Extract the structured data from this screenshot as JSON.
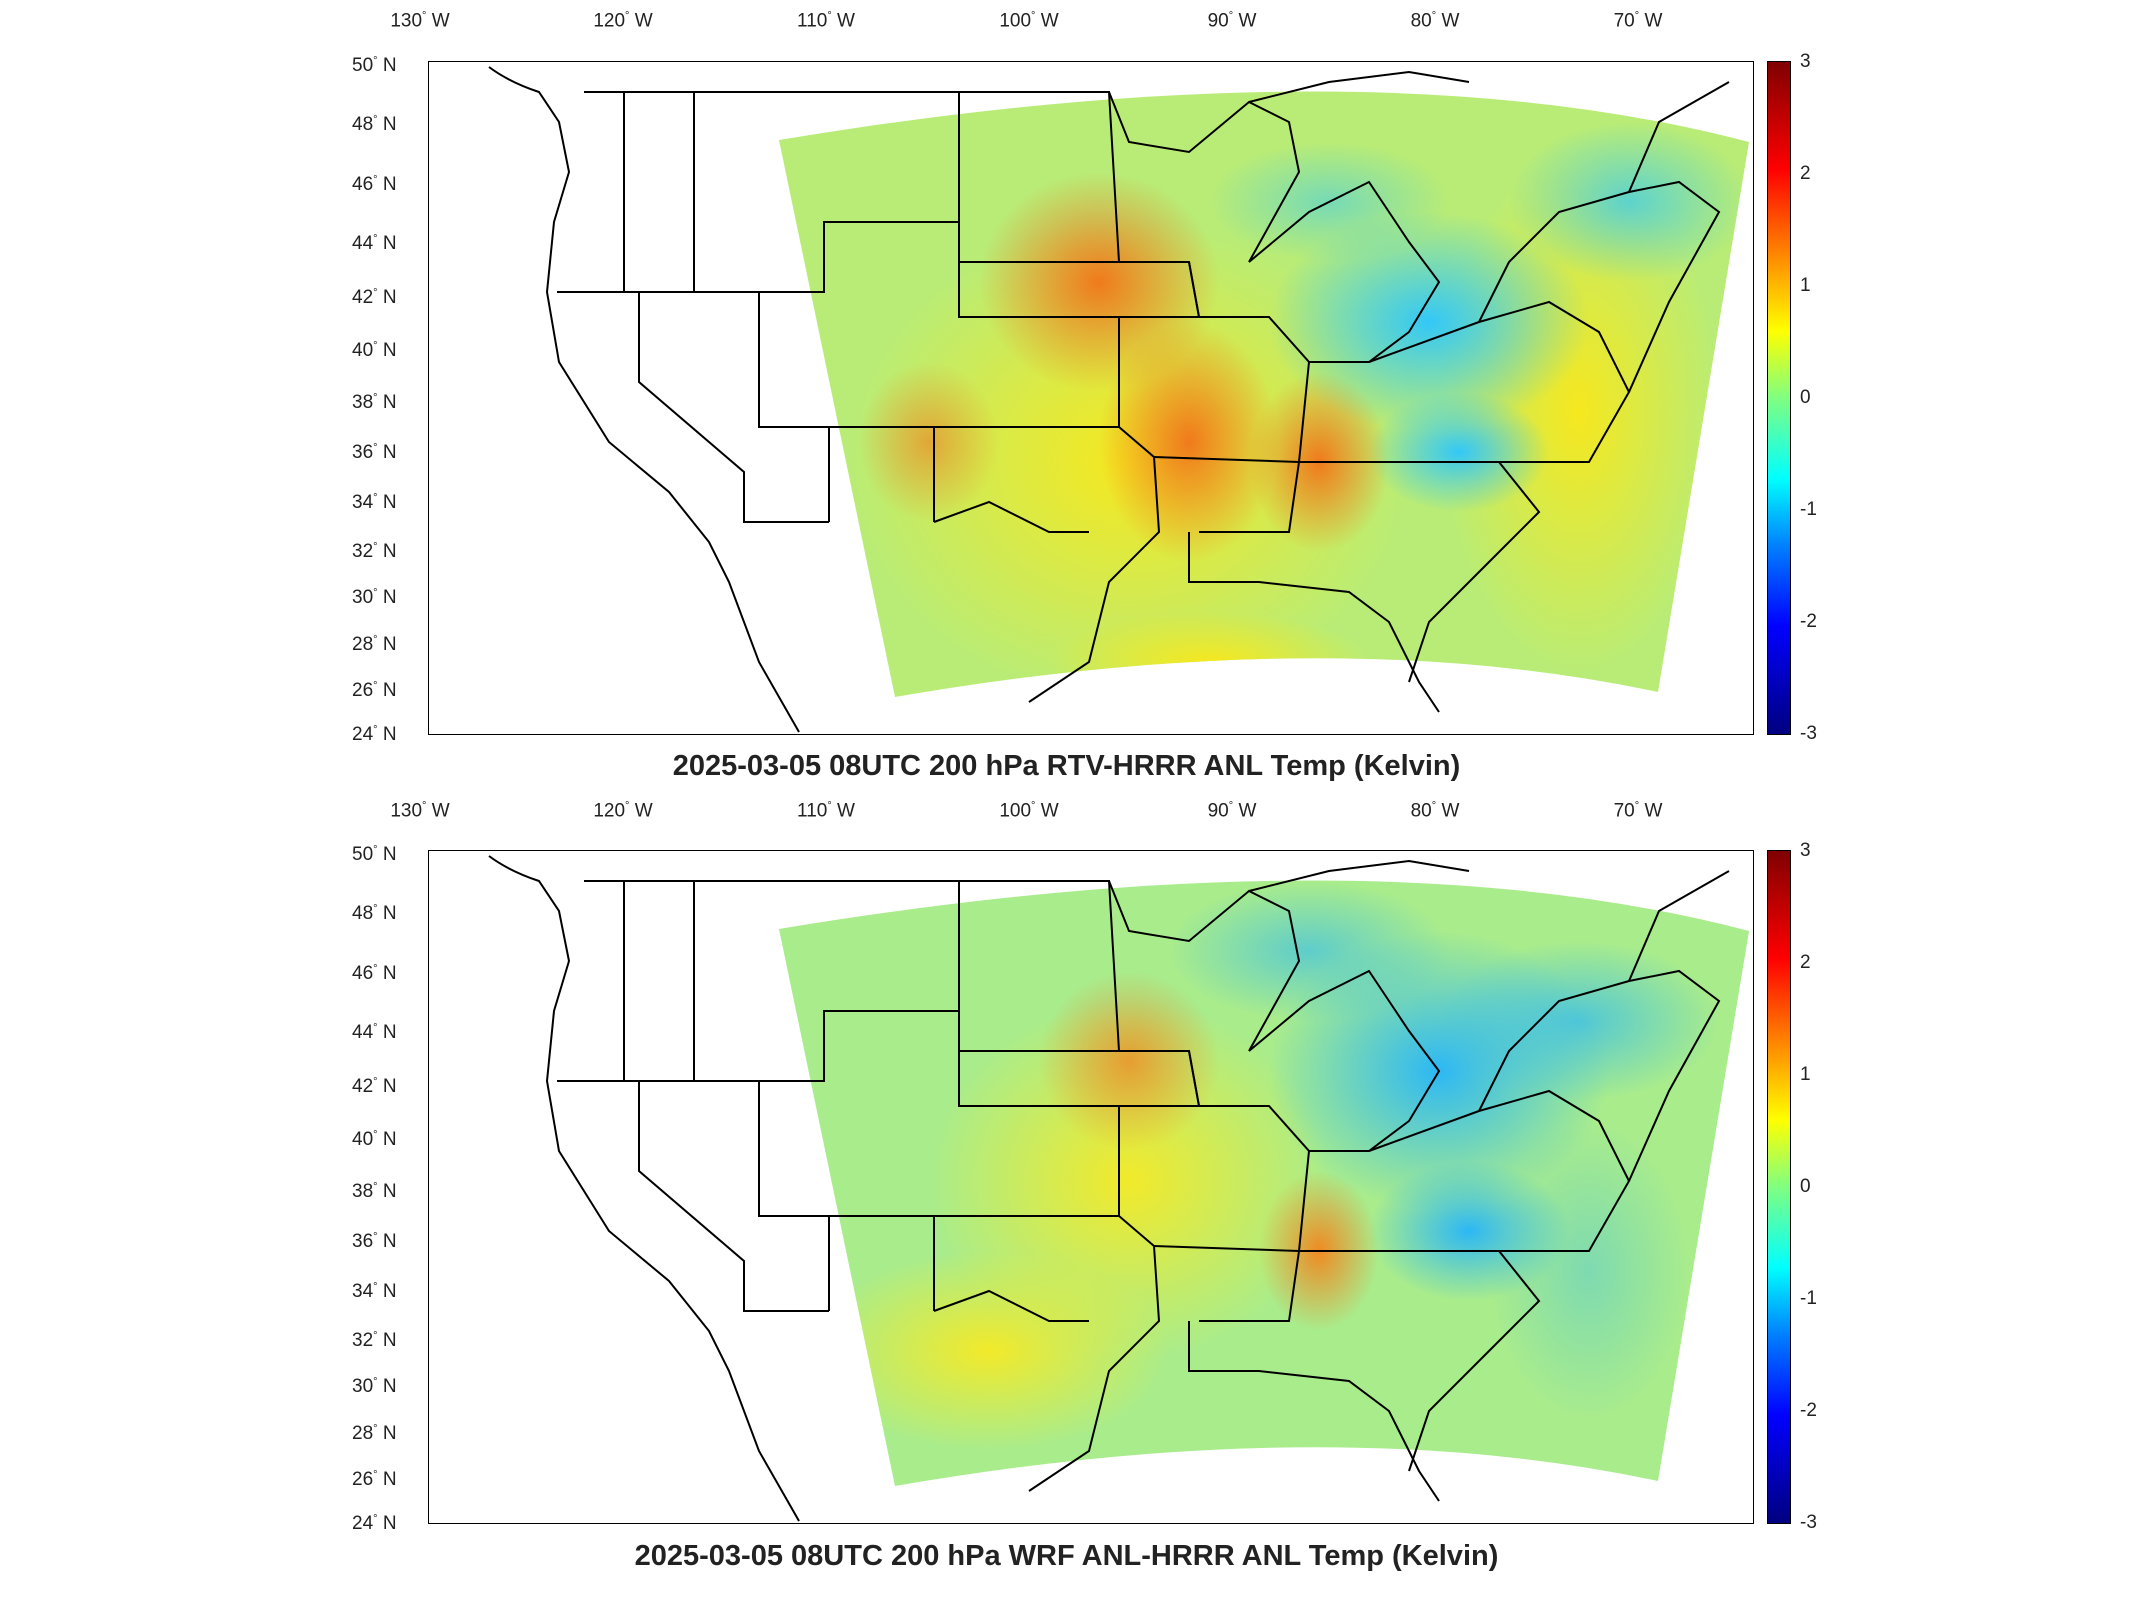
{
  "panels": [
    {
      "title": "2025-03-05 08UTC 200 hPa RTV-HRRR ANL Temp (Kelvin)",
      "variant": "rtv"
    },
    {
      "title": "2025-03-05 08UTC 200 hPa WRF ANL-HRRR ANL Temp (Kelvin)",
      "variant": "wrf"
    }
  ],
  "lon_labels": [
    "130",
    "120",
    "110",
    "100",
    "90",
    "80",
    "70"
  ],
  "lon_suffix": "W",
  "lat_labels": [
    "50",
    "48",
    "46",
    "44",
    "42",
    "40",
    "38",
    "36",
    "34",
    "32",
    "30",
    "28",
    "26",
    "24"
  ],
  "lat_suffix": "N",
  "degree_symbol": "°",
  "colorbar": {
    "ticks": [
      "3",
      "2",
      "1",
      "0",
      "-1",
      "-2",
      "-3"
    ],
    "range": [
      -3,
      3
    ],
    "colormap": [
      "#800000",
      "#ff0000",
      "#ff8000",
      "#ffff00",
      "#80ff80",
      "#00ffff",
      "#0080ff",
      "#0000ff",
      "#000080"
    ]
  },
  "colors": {
    "warm_anomaly": "#f29a2e",
    "neutral": "#c8ee6a",
    "cool_anomaly": "#3fd0f5",
    "boundary": "#000000"
  }
}
